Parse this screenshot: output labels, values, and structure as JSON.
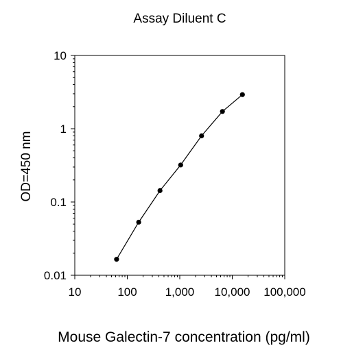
{
  "chart_data": {
    "type": "line",
    "title": "Assay Diluent C",
    "xlabel": "Mouse Galectin-7 concentration (pg/ml)",
    "ylabel": "OD=450 nm",
    "x_scale": "log",
    "y_scale": "log",
    "xlim": [
      10,
      100000
    ],
    "ylim": [
      0.01,
      10
    ],
    "x_ticks": [
      10,
      100,
      1000,
      10000,
      100000
    ],
    "x_tick_labels": [
      "10",
      "100",
      "1,000",
      "10,000",
      "100,000"
    ],
    "y_ticks": [
      0.01,
      0.1,
      1,
      10
    ],
    "y_tick_labels": [
      "0.01",
      "0.1",
      "1",
      "10"
    ],
    "grid": false,
    "legend": "none",
    "series": [
      {
        "x": [
          62.5,
          165,
          420,
          1040,
          2600,
          6500,
          15600
        ],
        "y": [
          0.0165,
          0.053,
          0.143,
          0.32,
          0.8,
          1.72,
          2.92
        ]
      }
    ],
    "colors": {
      "line": "#000000",
      "marker": "#000000",
      "axis": "#000000"
    }
  }
}
